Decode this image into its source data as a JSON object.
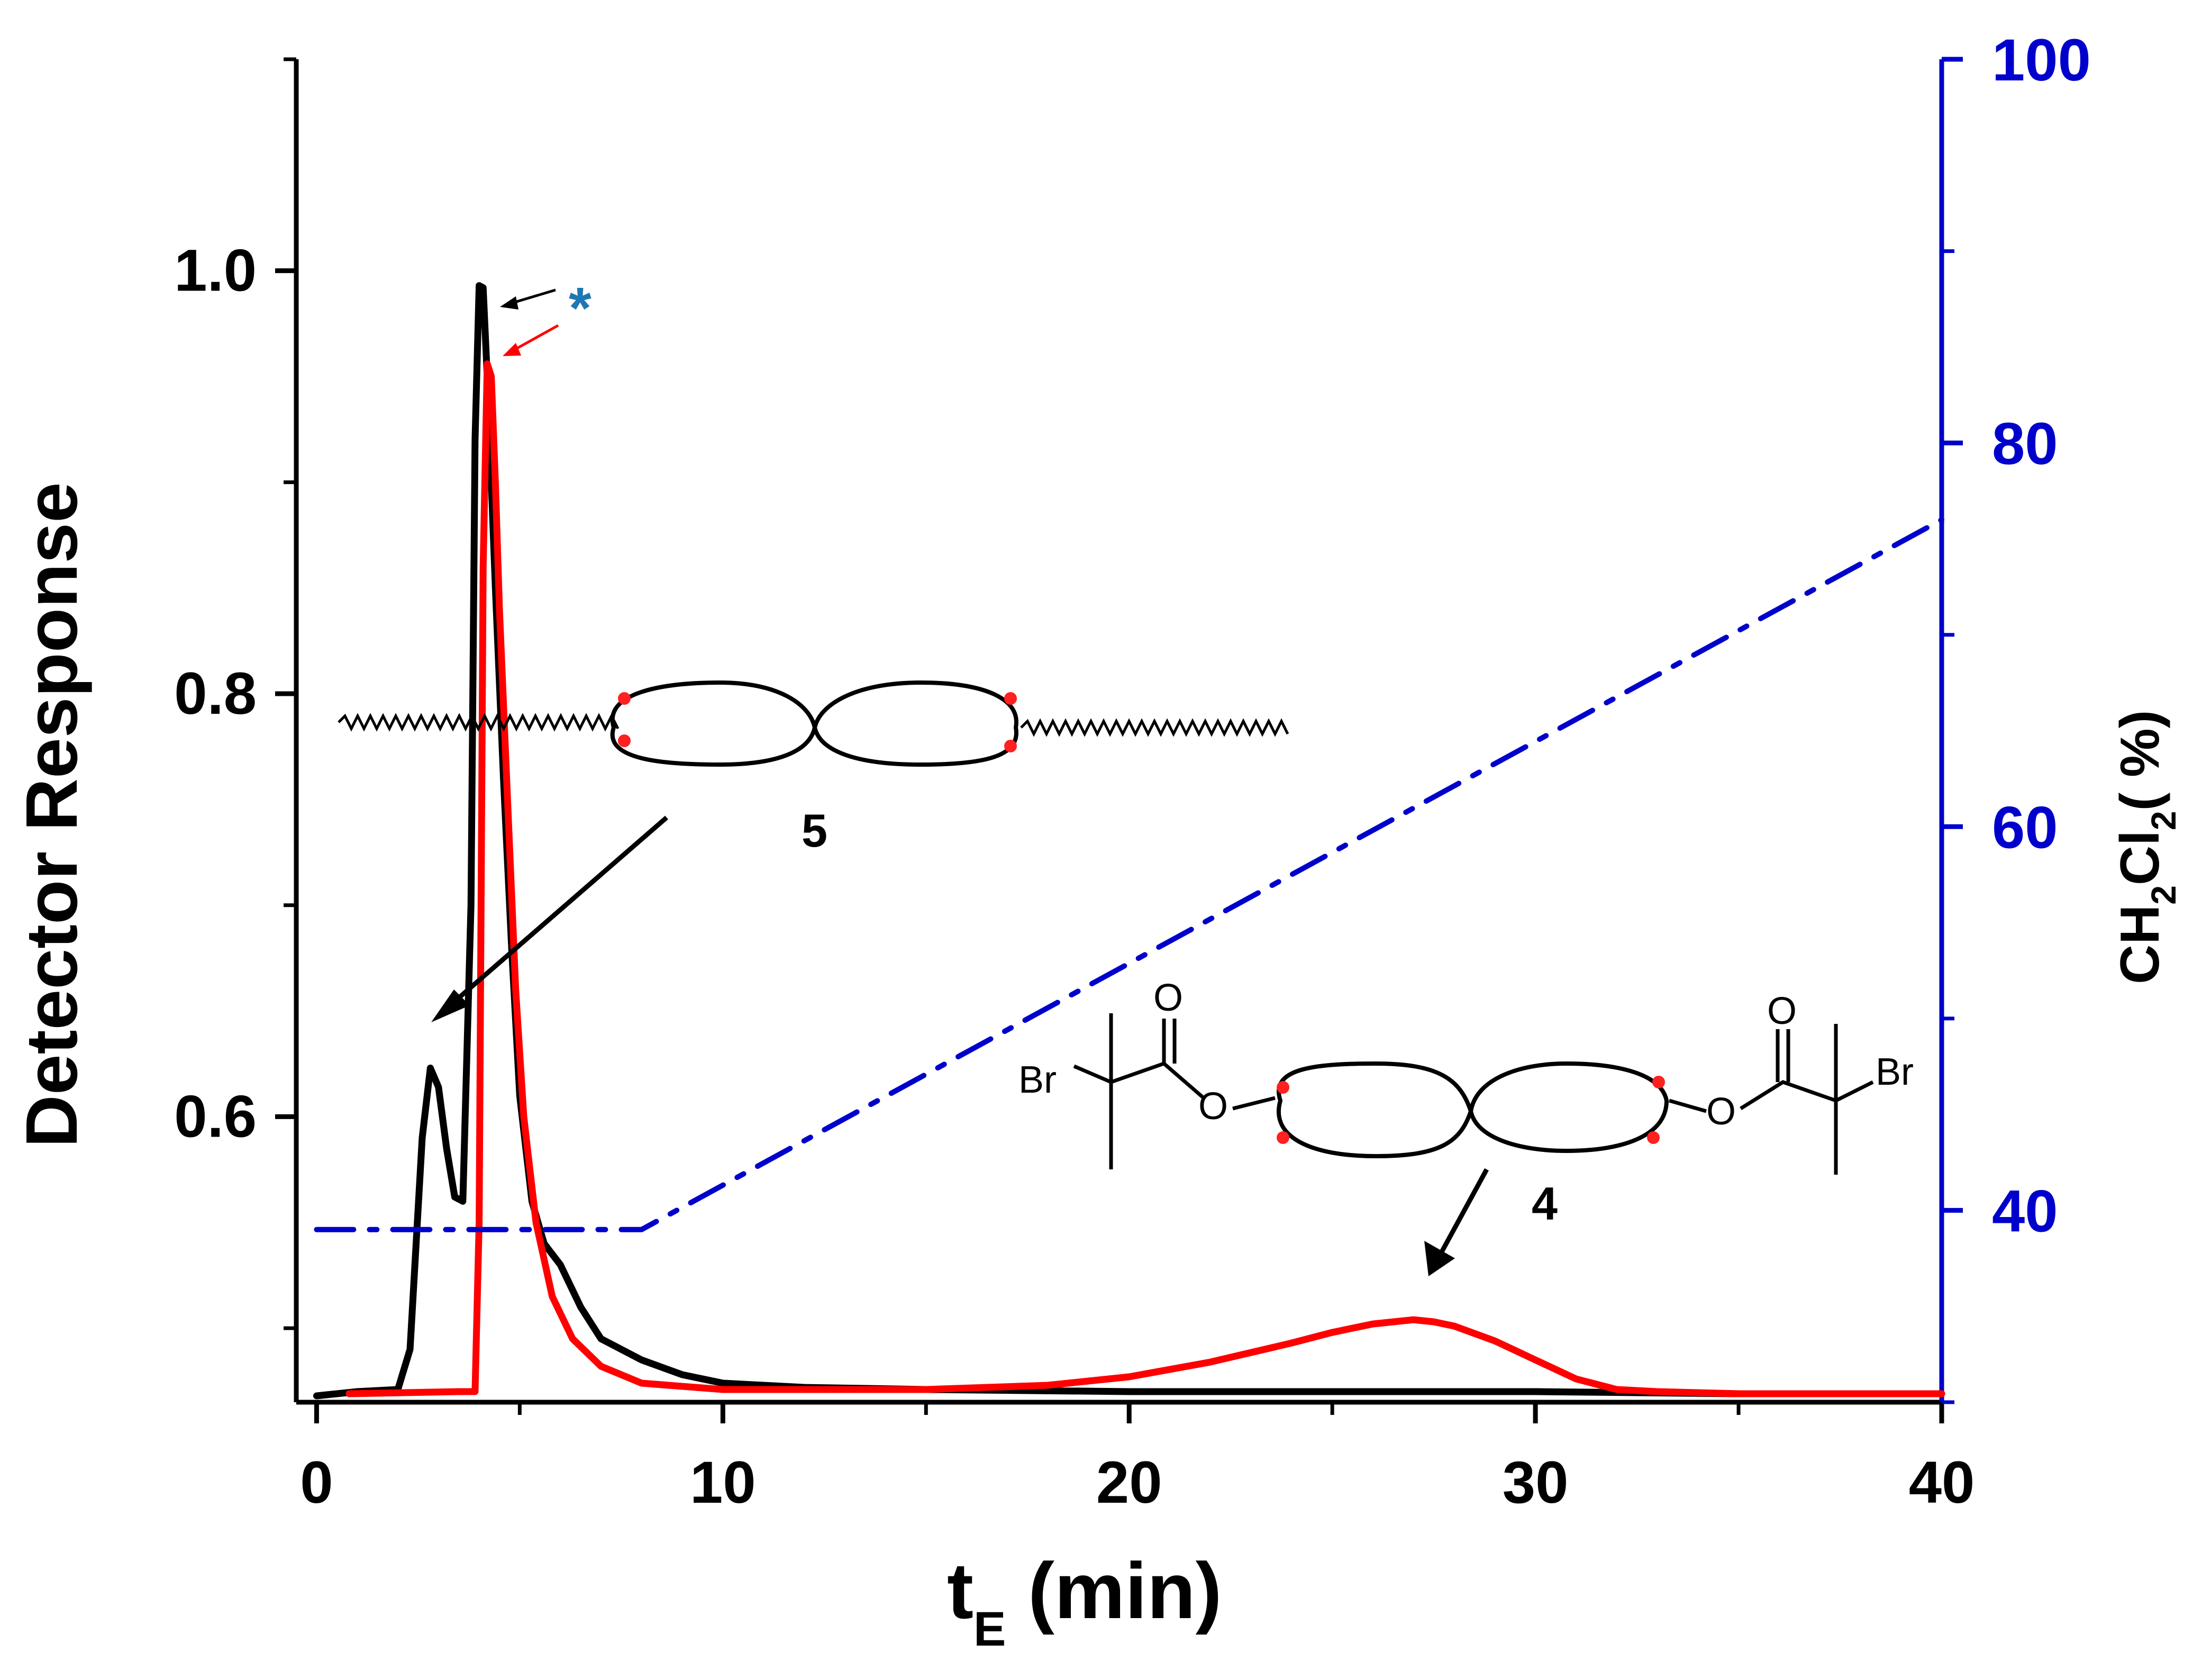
{
  "chart_data": {
    "type": "line",
    "title": "",
    "xlabel": "t",
    "xlabel_sub": "E",
    "xlabel_unit": " (min)",
    "ylabel_left": "Detector Response",
    "ylabel_right_parts": [
      "CH",
      "2",
      "Cl",
      "2",
      "( %)"
    ],
    "xlim": [
      -0.5,
      40
    ],
    "ylim_left": [
      0.465,
      1.1
    ],
    "ylim_right": [
      30,
      100
    ],
    "x_ticks": [
      0,
      10,
      20,
      30,
      40
    ],
    "x_minor_ticks": [
      5,
      15,
      25,
      35
    ],
    "y_left_ticks": [
      0.6,
      0.8,
      1.0
    ],
    "y_left_minor_ticks": [
      0.5,
      0.7,
      0.9
    ],
    "y_left_tick_labels": [
      "0.6",
      "0.8",
      "1.0"
    ],
    "y_right_ticks": [
      40,
      60,
      80,
      100
    ],
    "y_right_minor_ticks": [
      50,
      70,
      90
    ],
    "colors": {
      "black_trace": "#000000",
      "red_trace": "#ff0000",
      "gradient": "#0000cc",
      "asterisk": "#1f77b4"
    },
    "series": [
      {
        "name": "black",
        "axis": "left",
        "x": [
          0,
          1,
          2.0,
          2.3,
          2.6,
          2.8,
          3.0,
          3.2,
          3.4,
          3.6,
          3.8,
          3.9,
          4.0,
          4.1,
          4.2,
          4.3,
          4.4,
          4.6,
          4.8,
          5.0,
          5.3,
          5.6,
          6.0,
          6.5,
          7.0,
          7.5,
          8.0,
          9.0,
          10.0,
          12.0,
          15.0,
          20.0,
          30.0,
          35.0,
          40.0
        ],
        "y": [
          0.468,
          0.47,
          0.471,
          0.49,
          0.59,
          0.623,
          0.614,
          0.585,
          0.562,
          0.56,
          0.7,
          0.92,
          0.993,
          0.992,
          0.95,
          0.9,
          0.85,
          0.76,
          0.68,
          0.61,
          0.56,
          0.54,
          0.53,
          0.51,
          0.495,
          0.49,
          0.485,
          0.478,
          0.474,
          0.472,
          0.471,
          0.47,
          0.47,
          0.469,
          0.469
        ]
      },
      {
        "name": "red",
        "axis": "left",
        "x": [
          0.8,
          3.5,
          3.9,
          4.0,
          4.1,
          4.2,
          4.3,
          4.4,
          4.5,
          4.7,
          4.9,
          5.1,
          5.4,
          5.8,
          6.3,
          7.0,
          8.0,
          10.0,
          15.0,
          18.0,
          20.0,
          22.0,
          24.0,
          25.0,
          26.0,
          26.5,
          27.0,
          27.5,
          28.0,
          29.0,
          30.0,
          31.0,
          32.0,
          33.0,
          35.0,
          40.0
        ],
        "y": [
          0.469,
          0.47,
          0.47,
          0.55,
          0.86,
          0.956,
          0.95,
          0.9,
          0.84,
          0.75,
          0.66,
          0.6,
          0.55,
          0.515,
          0.495,
          0.482,
          0.474,
          0.471,
          0.471,
          0.473,
          0.477,
          0.484,
          0.493,
          0.498,
          0.502,
          0.503,
          0.504,
          0.503,
          0.501,
          0.494,
          0.485,
          0.476,
          0.471,
          0.47,
          0.469,
          0.469
        ]
      },
      {
        "name": "CH2Cl2 gradient",
        "axis": "right",
        "style": "dash-dot",
        "x": [
          0,
          8,
          40
        ],
        "y": [
          39,
          39,
          76
        ]
      }
    ],
    "annotations": [
      {
        "label": "5",
        "kind": "structure"
      },
      {
        "label": "4",
        "kind": "structure"
      },
      {
        "label": "*",
        "kind": "marker"
      }
    ],
    "chem": {
      "br": "Br",
      "o": "O"
    }
  }
}
